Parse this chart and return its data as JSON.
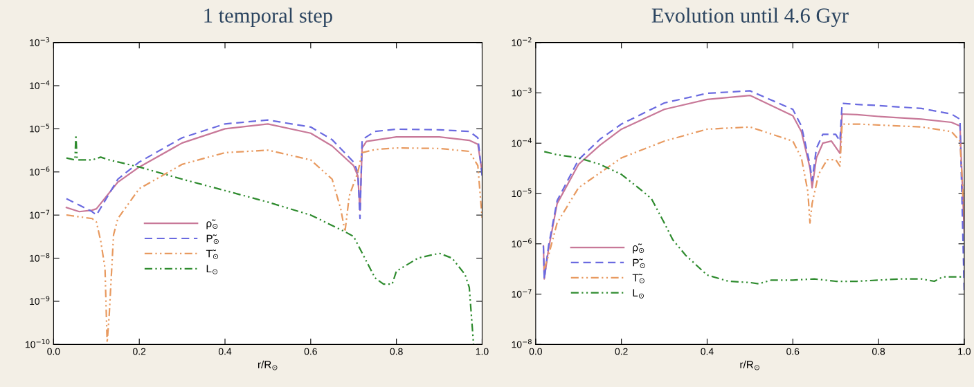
{
  "chart_data": [
    {
      "type": "line",
      "title": "1 temporal step",
      "xlabel": "r/R$_{⊙}$",
      "xlim": [
        0,
        1
      ],
      "ylim": [
        1e-10,
        0.001
      ],
      "log": "y",
      "legend": "bottom",
      "grid": false,
      "xticks": [
        {
          "value": 0,
          "label": "0.0"
        },
        {
          "value": 0.2,
          "label": "0.2"
        },
        {
          "value": 0.4,
          "label": "0.4"
        },
        {
          "value": 0.6,
          "label": "0.6"
        },
        {
          "value": 0.8,
          "label": "0.8"
        },
        {
          "value": 1,
          "label": "1.0"
        }
      ],
      "yticks": [
        {
          "value": 1e-10,
          "label": "10$^{−10}$"
        },
        {
          "value": 1e-09,
          "label": "10$^{−9}$"
        },
        {
          "value": 1e-08,
          "label": "10$^{−8}$"
        },
        {
          "value": 1e-07,
          "label": "10$^{−7}$"
        },
        {
          "value": 1e-06,
          "label": "10$^{−6}$"
        },
        {
          "value": 1e-05,
          "label": "10$^{−5}$"
        },
        {
          "value": 0.0001,
          "label": "10$^{−4}$"
        },
        {
          "value": 0.001,
          "label": "10$^{−3}$"
        }
      ],
      "series": [
        {
          "name": "ρ̃$_{⊙}$",
          "color": "#c87898",
          "line_style": "solid",
          "x": [
            0.03,
            0.06,
            0.09,
            0.1,
            0.15,
            0.2,
            0.3,
            0.4,
            0.5,
            0.6,
            0.65,
            0.7,
            0.71,
            0.715,
            0.72,
            0.73,
            0.8,
            0.9,
            0.97,
            0.99,
            1.0
          ],
          "values": [
            1.5e-07,
            1.2e-07,
            1.3e-07,
            1.4e-07,
            5.8e-07,
            1.3e-06,
            4.7e-06,
            1e-05,
            1.3e-05,
            7.9e-06,
            4e-06,
            1.4e-06,
            8.1e-07,
            1.3e-07,
            3.6e-06,
            5.1e-06,
            6.5e-06,
            6.5e-06,
            5.4e-06,
            4.4e-06,
            9.8e-07
          ]
        },
        {
          "name": "P̃$_{⊙}$",
          "color": "#6a6ae0",
          "line_style": "dashed",
          "x": [
            0.03,
            0.06,
            0.09,
            0.1,
            0.15,
            0.2,
            0.3,
            0.4,
            0.5,
            0.6,
            0.65,
            0.7,
            0.71,
            0.715,
            0.72,
            0.75,
            0.8,
            0.9,
            0.97,
            0.99,
            1.0
          ],
          "values": [
            2.4e-07,
            1.7e-07,
            1.2e-07,
            1e-07,
            6.8e-07,
            1.7e-06,
            6.2e-06,
            1.3e-05,
            1.6e-05,
            1.1e-05,
            5.6e-06,
            1.7e-06,
            9.8e-07,
            8.3e-08,
            5.6e-06,
            8.7e-06,
            9.8e-06,
            9.5e-06,
            8.7e-06,
            6.2e-06,
            8.1e-07
          ]
        },
        {
          "name": "T̃$_{⊙}$",
          "color": "#e89a60",
          "line_style": "dotted",
          "x": [
            0.03,
            0.09,
            0.1,
            0.11,
            0.12,
            0.125,
            0.13,
            0.14,
            0.15,
            0.2,
            0.3,
            0.4,
            0.5,
            0.6,
            0.65,
            0.67,
            0.68,
            0.69,
            0.71,
            0.72,
            0.75,
            0.8,
            0.9,
            0.97,
            0.99,
            1.0
          ],
          "values": [
            1e-07,
            8.3e-08,
            6.9e-08,
            2.5e-08,
            5.9e-09,
            1.1e-10,
            5.1e-10,
            3.5e-08,
            8.3e-08,
            4.1e-07,
            1.5e-06,
            2.8e-06,
            3.2e-06,
            1.9e-06,
            6.8e-07,
            1.4e-07,
            4.1e-08,
            2.8e-07,
            9.8e-07,
            2.8e-06,
            3.3e-06,
            3.6e-06,
            3.5e-06,
            3e-06,
            1.4e-06,
            8.3e-08
          ]
        },
        {
          "name": "L$_{⊙}$",
          "color": "#2e8b2e",
          "line_style": "dotted",
          "x": [
            0.03,
            0.05,
            0.052,
            0.055,
            0.09,
            0.11,
            0.13,
            0.2,
            0.3,
            0.4,
            0.5,
            0.6,
            0.68,
            0.7,
            0.73,
            0.75,
            0.77,
            0.79,
            0.8,
            0.85,
            0.9,
            0.93,
            0.96,
            0.97,
            0.98
          ],
          "values": [
            2.1e-06,
            1.9e-06,
            7.2e-06,
            1.9e-06,
            1.9e-06,
            2.2e-06,
            1.9e-06,
            1.3e-06,
            6.8e-07,
            3.7e-07,
            2e-07,
            1e-07,
            4.1e-08,
            3.2e-08,
            8.5e-09,
            3.5e-09,
            2.5e-09,
            2.5e-09,
            5e-09,
            1e-08,
            1.3e-08,
            1e-08,
            4.2e-09,
            2.1e-09,
            1e-10
          ]
        }
      ]
    },
    {
      "type": "line",
      "title": "Evolution until 4.6 Gyr",
      "xlabel": "r/R$_{⊙}$",
      "xlim": [
        0,
        1
      ],
      "ylim": [
        1e-08,
        0.01
      ],
      "log": "y",
      "legend": "bottom left",
      "grid": false,
      "xticks": [
        {
          "value": 0,
          "label": "0.0"
        },
        {
          "value": 0.2,
          "label": "0.2"
        },
        {
          "value": 0.4,
          "label": "0.4"
        },
        {
          "value": 0.6,
          "label": "0.6"
        },
        {
          "value": 0.8,
          "label": "0.8"
        },
        {
          "value": 1,
          "label": "1.0"
        }
      ],
      "yticks": [
        {
          "value": 1e-08,
          "label": "10$^{−8}$"
        },
        {
          "value": 1e-07,
          "label": "10$^{−7}$"
        },
        {
          "value": 1e-06,
          "label": "10$^{−6}$"
        },
        {
          "value": 1e-05,
          "label": "10$^{−5}$"
        },
        {
          "value": 0.0001,
          "label": "10$^{−4}$"
        },
        {
          "value": 0.001,
          "label": "10$^{−3}$"
        },
        {
          "value": 0.01,
          "label": "10$^{−2}$"
        }
      ],
      "series": [
        {
          "name": "ρ̃$_{⊙}$",
          "color": "#c87898",
          "line_style": "solid",
          "x": [
            0.018,
            0.02,
            0.03,
            0.05,
            0.1,
            0.15,
            0.2,
            0.3,
            0.4,
            0.5,
            0.6,
            0.62,
            0.64,
            0.645,
            0.655,
            0.67,
            0.69,
            0.71,
            0.715,
            0.75,
            0.8,
            0.9,
            0.97,
            0.99,
            1.0
          ],
          "values": [
            9.1e-07,
            2e-07,
            7.9e-07,
            6.3e-06,
            3.8e-05,
            9.1e-05,
            0.00019,
            0.00047,
            0.00074,
            0.00089,
            0.00035,
            0.00017,
            3.2e-05,
            1.3e-05,
            5.1e-05,
            0.0001,
            0.00011,
            6.3e-05,
            0.00038,
            0.00037,
            0.00034,
            0.0003,
            0.00026,
            0.00022,
            1.7e-06
          ]
        },
        {
          "name": "P̃$_{⊙}$",
          "color": "#6a6ae0",
          "line_style": "dashed",
          "x": [
            0.018,
            0.02,
            0.03,
            0.05,
            0.1,
            0.15,
            0.2,
            0.3,
            0.4,
            0.5,
            0.6,
            0.62,
            0.64,
            0.645,
            0.655,
            0.67,
            0.7,
            0.71,
            0.715,
            0.75,
            0.8,
            0.9,
            0.97,
            0.99,
            1.0
          ],
          "values": [
            9.1e-07,
            2e-07,
            9.1e-07,
            7.2e-06,
            4.7e-05,
            0.00012,
            0.00024,
            0.00063,
            0.00098,
            0.0011,
            0.00047,
            0.00022,
            3.8e-05,
            1.8e-05,
            7.9e-05,
            0.00015,
            0.00015,
            0.00011,
            0.00062,
            0.00059,
            0.00056,
            0.00049,
            0.00038,
            0.0003,
            1.1e-07
          ]
        },
        {
          "name": "T̃$_{⊙}$",
          "color": "#e89a60",
          "line_style": "dotted",
          "x": [
            0.02,
            0.03,
            0.05,
            0.1,
            0.2,
            0.3,
            0.4,
            0.5,
            0.6,
            0.62,
            0.635,
            0.64,
            0.645,
            0.66,
            0.68,
            0.7,
            0.71,
            0.715,
            0.75,
            0.8,
            0.9,
            0.97,
            0.99,
            1.0
          ],
          "values": [
            3.2e-07,
            5.9e-07,
            2.6e-06,
            1.3e-05,
            5.1e-05,
            0.00011,
            0.00019,
            0.00021,
            0.00011,
            5.1e-05,
            1.1e-05,
            2.6e-06,
            6.3e-06,
            2.4e-05,
            4.7e-05,
            4.7e-05,
            3.5e-05,
            0.00024,
            0.00024,
            0.00023,
            0.00021,
            0.00017,
            0.00011,
            3.5e-06
          ]
        },
        {
          "name": "L$_{⊙}$",
          "color": "#2e8b2e",
          "line_style": "dotted",
          "x": [
            0.02,
            0.05,
            0.1,
            0.15,
            0.2,
            0.25,
            0.27,
            0.3,
            0.32,
            0.35,
            0.4,
            0.45,
            0.5,
            0.52,
            0.55,
            0.6,
            0.65,
            0.7,
            0.75,
            0.8,
            0.85,
            0.9,
            0.93,
            0.95,
            1.0
          ],
          "values": [
            6.8e-05,
            5.9e-05,
            5.1e-05,
            3.8e-05,
            2.4e-05,
            1.1e-05,
            7.9e-06,
            2.6e-06,
            1.2e-06,
            5.9e-07,
            2.4e-07,
            1.8e-07,
            1.7e-07,
            1.6e-07,
            1.9e-07,
            1.9e-07,
            2e-07,
            1.8e-07,
            1.8e-07,
            1.9e-07,
            2e-07,
            2e-07,
            1.8e-07,
            2.2e-07,
            2.2e-07
          ]
        }
      ]
    }
  ]
}
